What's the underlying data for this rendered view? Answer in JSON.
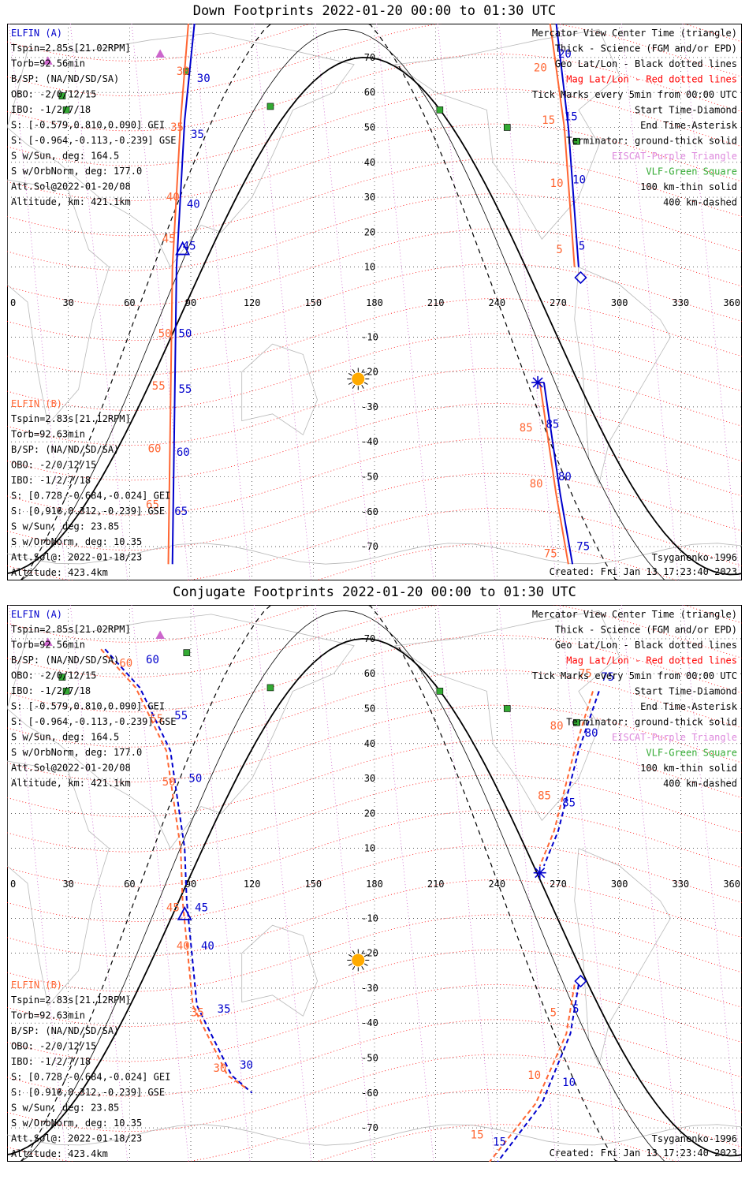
{
  "panels": [
    {
      "title": "Down Footprints 2022-01-20 00:00 to 01:30 UTC",
      "ela_info": [
        "Tspin=2.85s[21.02RPM]",
        "Torb=92.56min",
        "B/SP: (NA/ND/SD/SA)",
        "OBO: -2/0/12/15",
        "IBO: -1/2/7/18",
        "S: [-0.579,0.810,0.090] GEI",
        "S: [-0.964,-0.113,-0.239] GSE",
        "S w/Sun, deg: 164.5",
        "S w/OrbNorm, deg: 177.0",
        "Att.Sol@2022-01-20/08",
        "Altitude, km: 421.1km"
      ],
      "elb_info": [
        "Tspin=2.83s[21.12RPM]",
        "Torb=92.63min",
        "B/SP: (NA/ND/SD/SA)",
        "OBO: -2/0/12/15",
        "IBO: -1/2/7/18",
        "S: [0.728,-0.684,-0.024] GEI",
        "S: [0,916,0.312,-0.239] GSE",
        "S w/Sun, deg: 23.85",
        "S w/OrbNorm, deg: 10.35",
        "Att.Sol@: 2022-01-18/23",
        "Altitude: 423.4km"
      ],
      "legend": [
        {
          "text": "Mercator View Center Time (triangle)",
          "color": "#000000"
        },
        {
          "text": "Thick - Science (FGM and/or EPD)",
          "color": "#000000"
        },
        {
          "text": "Geo Lat/Lon - Black dotted lines",
          "color": "#000000"
        },
        {
          "text": "Mag Lat/Lon - Red dotted lines",
          "color": "#ff0000"
        },
        {
          "text": "Tick Marks every 5min from 00:00 UTC",
          "color": "#000000"
        },
        {
          "text": "Start Time-Diamond",
          "color": "#000000"
        },
        {
          "text": "End Time-Asterisk",
          "color": "#000000"
        },
        {
          "text": "Terminator: ground-thick solid",
          "color": "#000000"
        },
        {
          "text": "EISCAT-Purple Triangle",
          "color": "#dd88dd"
        },
        {
          "text": "VLF-Green Square",
          "color": "#33aa33"
        },
        {
          "text": "100 km-thin solid",
          "color": "#000000"
        },
        {
          "text": "400 km-dashed",
          "color": "#000000"
        }
      ],
      "model": "Tsyganenko-1996",
      "created": "Created: Fri Jan 13 17:23:40 2023"
    },
    {
      "title": "Conjugate Footprints 2022-01-20 00:00 to 01:30 UTC",
      "ela_info": [
        "Tspin=2.85s[21.02RPM]",
        "Torb=92.56min",
        "B/SP: (NA/ND/SD/SA)",
        "OBO: -2/0/12/15",
        "IBO: -1/2/7/18",
        "S: [-0.579,0.810,0.090] GEI",
        "S: [-0.964,-0.113,-0.239] GSE",
        "S w/Sun, deg: 164.5",
        "S w/OrbNorm, deg: 177.0",
        "Att.Sol@2022-01-20/08",
        "Altitude, km: 421.1km"
      ],
      "elb_info": [
        "Tspin=2.83s[21.12RPM]",
        "Torb=92.63min",
        "B/SP: (NA/ND/SD/SA)",
        "OBO: -2/0/12/15",
        "IBO: -1/2/7/18",
        "S: [0.728,-0.684,-0.024] GEI",
        "S: [0.916,0.312,-0.239] GSE",
        "S w/Sun, deg: 23.85",
        "S w/OrbNorm, deg: 10.35",
        "Att.Sol@: 2022-01-18/23",
        "Altitude: 423.4km"
      ],
      "legend": [
        {
          "text": "Mercator View Center Time (triangle)",
          "color": "#000000"
        },
        {
          "text": "Thick - Science (FGM and/or EPD)",
          "color": "#000000"
        },
        {
          "text": "Geo Lat/Lon - Black dotted lines",
          "color": "#000000"
        },
        {
          "text": "Mag Lat/Lon - Red dotted lines",
          "color": "#ff0000"
        },
        {
          "text": "Tick Marks every 5min from 00:00 UTC",
          "color": "#000000"
        },
        {
          "text": "Start Time-Diamond",
          "color": "#000000"
        },
        {
          "text": "End Time-Asterisk",
          "color": "#000000"
        },
        {
          "text": "Terminator: ground-thick solid",
          "color": "#000000"
        },
        {
          "text": "EISCAT-Purple Triangle",
          "color": "#dd88dd"
        },
        {
          "text": "VLF-Green Square",
          "color": "#33aa33"
        },
        {
          "text": "100 km-thin solid",
          "color": "#000000"
        },
        {
          "text": "400 km-dashed",
          "color": "#000000"
        }
      ],
      "model": "Tsyganenko-1996",
      "created": "Created: Fri Jan 13 17:23:40 2023"
    }
  ],
  "colors": {
    "ela": "#0000cc",
    "elb": "#ff6633",
    "grid": "#000000",
    "mag_grid": "#ff0000",
    "terminator": "#000000",
    "sun": "#ffaa00",
    "vlf": "#33aa33",
    "eiscat": "#cc66cc"
  },
  "chart_data": [
    {
      "type": "scatter",
      "title": "Down Footprints 2022-01-20 00:00 to 01:30 UTC",
      "xlim": [
        0,
        360
      ],
      "ylim": [
        -80,
        80
      ],
      "lon_ticks": [
        0,
        30,
        60,
        90,
        120,
        150,
        180,
        210,
        240,
        270,
        300,
        330,
        360
      ],
      "lat_ticks": [
        70,
        60,
        50,
        40,
        30,
        20,
        10,
        -10,
        -20,
        -30,
        -40,
        -50,
        -60,
        -70
      ],
      "ela_label": "ELFIN (A)",
      "elb_label": "ELFIN (B)",
      "tracks": [
        {
          "probe": "ela",
          "style": "solid",
          "points": [
            [
              92,
              81
            ],
            [
              87,
              52
            ],
            [
              83,
              10
            ],
            [
              81,
              -75
            ]
          ]
        },
        {
          "probe": "elb",
          "style": "solid",
          "points": [
            [
              89,
              81
            ],
            [
              85,
              52
            ],
            [
              81,
              10
            ],
            [
              79,
              -75
            ]
          ]
        },
        {
          "probe": "ela",
          "style": "solid",
          "points": [
            [
              269,
              80
            ],
            [
              275,
              50
            ],
            [
              280,
              10
            ]
          ]
        },
        {
          "probe": "elb",
          "style": "solid",
          "points": [
            [
              266,
              80
            ],
            [
              273,
              50
            ],
            [
              278,
              10
            ]
          ]
        },
        {
          "probe": "ela",
          "style": "solid",
          "points": [
            [
              263,
              -23
            ],
            [
              271,
              -55
            ],
            [
              277,
              -75
            ]
          ]
        },
        {
          "probe": "elb",
          "style": "solid",
          "points": [
            [
              261,
              -23
            ],
            [
              269,
              -55
            ],
            [
              275,
              -75
            ]
          ]
        }
      ],
      "tick_labels": [
        {
          "probe": "ela",
          "text": "30",
          "lon": 93,
          "lat": 63
        },
        {
          "probe": "elb",
          "text": "30",
          "lon": 83,
          "lat": 65
        },
        {
          "probe": "ela",
          "text": "35",
          "lon": 90,
          "lat": 47
        },
        {
          "probe": "elb",
          "text": "35",
          "lon": 80,
          "lat": 49
        },
        {
          "probe": "ela",
          "text": "40",
          "lon": 88,
          "lat": 27
        },
        {
          "probe": "elb",
          "text": "40",
          "lon": 78,
          "lat": 29
        },
        {
          "probe": "ela",
          "text": "45",
          "lon": 86,
          "lat": 15
        },
        {
          "probe": "elb",
          "text": "45",
          "lon": 76,
          "lat": 17
        },
        {
          "probe": "ela",
          "text": "50",
          "lon": 84,
          "lat": -10
        },
        {
          "probe": "elb",
          "text": "50",
          "lon": 74,
          "lat": -10
        },
        {
          "probe": "ela",
          "text": "55",
          "lon": 84,
          "lat": -26
        },
        {
          "probe": "elb",
          "text": "55",
          "lon": 71,
          "lat": -25
        },
        {
          "probe": "ela",
          "text": "60",
          "lon": 83,
          "lat": -44
        },
        {
          "probe": "elb",
          "text": "60",
          "lon": 69,
          "lat": -43
        },
        {
          "probe": "ela",
          "text": "65",
          "lon": 82,
          "lat": -61
        },
        {
          "probe": "elb",
          "text": "65",
          "lon": 68,
          "lat": -59
        },
        {
          "probe": "ela",
          "text": "20",
          "lon": 270,
          "lat": 70
        },
        {
          "probe": "elb",
          "text": "20",
          "lon": 258,
          "lat": 66
        },
        {
          "probe": "ela",
          "text": "15",
          "lon": 273,
          "lat": 52
        },
        {
          "probe": "elb",
          "text": "15",
          "lon": 262,
          "lat": 51
        },
        {
          "probe": "ela",
          "text": "10",
          "lon": 277,
          "lat": 34
        },
        {
          "probe": "elb",
          "text": "10",
          "lon": 266,
          "lat": 33
        },
        {
          "probe": "ela",
          "text": "5",
          "lon": 280,
          "lat": 15
        },
        {
          "probe": "elb",
          "text": "5",
          "lon": 269,
          "lat": 14
        },
        {
          "probe": "ela",
          "text": "85",
          "lon": 264,
          "lat": -36
        },
        {
          "probe": "elb",
          "text": "85",
          "lon": 251,
          "lat": -37
        },
        {
          "probe": "ela",
          "text": "80",
          "lon": 270,
          "lat": -51
        },
        {
          "probe": "elb",
          "text": "80",
          "lon": 256,
          "lat": -53
        },
        {
          "probe": "ela",
          "text": "75",
          "lon": 279,
          "lat": -71
        },
        {
          "probe": "elb",
          "text": "75",
          "lon": 263,
          "lat": -73
        }
      ],
      "markers": [
        {
          "kind": "triangle",
          "lon": 86,
          "lat": 15
        },
        {
          "kind": "diamond",
          "lon": 281,
          "lat": 7
        },
        {
          "kind": "asterisk",
          "lon": 260,
          "lat": -23
        },
        {
          "kind": "sun",
          "lon": 172,
          "lat": -22
        }
      ],
      "vlf_sites": [
        [
          88,
          66
        ],
        [
          27,
          59
        ],
        [
          29,
          55
        ],
        [
          129,
          56
        ],
        [
          212,
          55
        ],
        [
          245,
          50
        ],
        [
          279,
          46
        ]
      ],
      "eiscat_sites": [
        [
          20,
          69
        ],
        [
          75,
          71
        ]
      ]
    },
    {
      "type": "scatter",
      "title": "Conjugate Footprints 2022-01-20 00:00 to 01:30 UTC",
      "xlim": [
        0,
        360
      ],
      "ylim": [
        -80,
        80
      ],
      "lon_ticks": [
        0,
        30,
        60,
        90,
        120,
        150,
        180,
        210,
        240,
        270,
        300,
        330,
        360
      ],
      "lat_ticks": [
        70,
        60,
        50,
        40,
        30,
        20,
        10,
        -10,
        -20,
        -30,
        -40,
        -50,
        -60,
        -70
      ],
      "ela_label": "ELFIN (A)",
      "elb_label": "ELFIN (B)",
      "tracks": [
        {
          "probe": "ela",
          "style": "dashed",
          "points": [
            [
              48,
              67
            ],
            [
              65,
              56
            ],
            [
              80,
              38
            ],
            [
              87,
              10
            ],
            [
              88,
              -5
            ],
            [
              93,
              -35
            ],
            [
              110,
              -55
            ],
            [
              120,
              -60
            ]
          ]
        },
        {
          "probe": "elb",
          "style": "dashed",
          "points": [
            [
              46,
              67
            ],
            [
              63,
              56
            ],
            [
              78,
              38
            ],
            [
              85,
              10
            ],
            [
              86,
              -5
            ],
            [
              91,
              -35
            ],
            [
              108,
              -55
            ],
            [
              118,
              -59
            ]
          ]
        },
        {
          "probe": "ela",
          "style": "dashed",
          "points": [
            [
              290,
              55
            ],
            [
              280,
              38
            ],
            [
              270,
              15
            ],
            [
              263,
              5
            ]
          ]
        },
        {
          "probe": "elb",
          "style": "dashed",
          "points": [
            [
              287,
              55
            ],
            [
              278,
              38
            ],
            [
              268,
              15
            ],
            [
              261,
              5
            ]
          ]
        },
        {
          "probe": "ela",
          "style": "dashed",
          "points": [
            [
              280,
              -29
            ],
            [
              276,
              -43
            ],
            [
              262,
              -63
            ],
            [
              240,
              -80
            ],
            [
              200,
              -80
            ]
          ]
        },
        {
          "probe": "elb",
          "style": "dashed",
          "points": [
            [
              278,
              -29
            ],
            [
              274,
              -43
            ],
            [
              259,
              -63
            ],
            [
              236,
              -80
            ],
            [
              196,
              -80
            ]
          ]
        }
      ],
      "tick_labels": [
        {
          "probe": "ela",
          "text": "60",
          "lon": 68,
          "lat": 63
        },
        {
          "probe": "elb",
          "text": "60",
          "lon": 55,
          "lat": 62
        },
        {
          "probe": "ela",
          "text": "55",
          "lon": 82,
          "lat": 47
        },
        {
          "probe": "elb",
          "text": "55",
          "lon": 70,
          "lat": 46
        },
        {
          "probe": "ela",
          "text": "50",
          "lon": 89,
          "lat": 29
        },
        {
          "probe": "elb",
          "text": "50",
          "lon": 76,
          "lat": 28
        },
        {
          "probe": "ela",
          "text": "45",
          "lon": 92,
          "lat": -8
        },
        {
          "probe": "elb",
          "text": "45",
          "lon": 78,
          "lat": -8
        },
        {
          "probe": "ela",
          "text": "40",
          "lon": 95,
          "lat": -19
        },
        {
          "probe": "elb",
          "text": "40",
          "lon": 83,
          "lat": -19
        },
        {
          "probe": "ela",
          "text": "35",
          "lon": 103,
          "lat": -37
        },
        {
          "probe": "elb",
          "text": "35",
          "lon": 90,
          "lat": -38
        },
        {
          "probe": "ela",
          "text": "30",
          "lon": 114,
          "lat": -53
        },
        {
          "probe": "elb",
          "text": "30",
          "lon": 101,
          "lat": -54
        },
        {
          "probe": "ela",
          "text": "75",
          "lon": 291,
          "lat": 58
        },
        {
          "probe": "elb",
          "text": "75",
          "lon": 280,
          "lat": 59
        },
        {
          "probe": "ela",
          "text": "80",
          "lon": 283,
          "lat": 42
        },
        {
          "probe": "elb",
          "text": "80",
          "lon": 266,
          "lat": 44
        },
        {
          "probe": "ela",
          "text": "85",
          "lon": 272,
          "lat": 22
        },
        {
          "probe": "elb",
          "text": "85",
          "lon": 260,
          "lat": 24
        },
        {
          "probe": "ela",
          "text": "5",
          "lon": 277,
          "lat": -37
        },
        {
          "probe": "elb",
          "text": "5",
          "lon": 266,
          "lat": -38
        },
        {
          "probe": "ela",
          "text": "10",
          "lon": 272,
          "lat": -58
        },
        {
          "probe": "elb",
          "text": "10",
          "lon": 255,
          "lat": -56
        },
        {
          "probe": "ela",
          "text": "15",
          "lon": 238,
          "lat": -75
        },
        {
          "probe": "elb",
          "text": "15",
          "lon": 227,
          "lat": -73
        }
      ],
      "markers": [
        {
          "kind": "triangle",
          "lon": 87,
          "lat": -9
        },
        {
          "kind": "diamond",
          "lon": 281,
          "lat": -28
        },
        {
          "kind": "asterisk",
          "lon": 261,
          "lat": 3
        },
        {
          "kind": "sun",
          "lon": 172,
          "lat": -22
        }
      ],
      "vlf_sites": [
        [
          88,
          66
        ],
        [
          27,
          59
        ],
        [
          29,
          55
        ],
        [
          129,
          56
        ],
        [
          212,
          55
        ],
        [
          245,
          50
        ],
        [
          279,
          46
        ]
      ],
      "eiscat_sites": [
        [
          20,
          69
        ],
        [
          75,
          71
        ]
      ]
    }
  ]
}
